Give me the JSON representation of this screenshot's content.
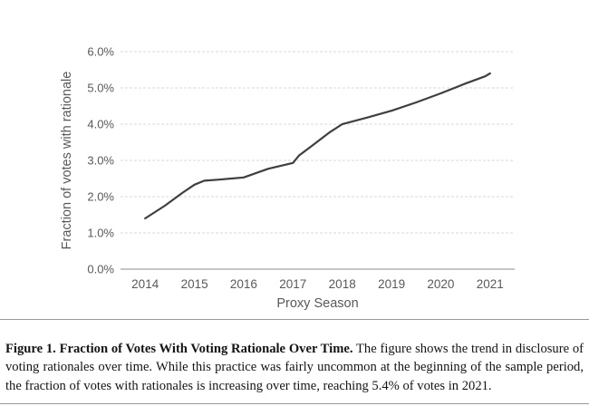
{
  "chart_data": {
    "type": "line",
    "title": "",
    "xlabel": "Proxy Season",
    "ylabel": "Fraction of votes with rationale",
    "categories": [
      "2014",
      "2015",
      "2016",
      "2017",
      "2018",
      "2019",
      "2020",
      "2021"
    ],
    "series": [
      {
        "name": "Fraction of votes with rationale",
        "values": [
          1.4,
          2.35,
          2.55,
          2.93,
          4.0,
          4.37,
          4.85,
          5.4
        ]
      }
    ],
    "detailed_points": [
      [
        2014.0,
        1.4
      ],
      [
        2014.4,
        1.75
      ],
      [
        2014.75,
        2.1
      ],
      [
        2015.0,
        2.33
      ],
      [
        2015.2,
        2.44
      ],
      [
        2015.5,
        2.47
      ],
      [
        2016.0,
        2.53
      ],
      [
        2016.5,
        2.77
      ],
      [
        2017.0,
        2.93
      ],
      [
        2017.12,
        3.13
      ],
      [
        2017.4,
        3.42
      ],
      [
        2017.75,
        3.78
      ],
      [
        2018.0,
        4.0
      ],
      [
        2018.5,
        4.18
      ],
      [
        2019.0,
        4.37
      ],
      [
        2019.5,
        4.6
      ],
      [
        2020.0,
        4.85
      ],
      [
        2020.5,
        5.12
      ],
      [
        2020.9,
        5.32
      ],
      [
        2021.0,
        5.4
      ]
    ],
    "ylim": [
      0,
      6
    ],
    "ytick_step": 1.0,
    "ytick_labels": [
      "0.0%",
      "1.0%",
      "2.0%",
      "3.0%",
      "4.0%",
      "5.0%",
      "6.0%"
    ],
    "grid": true,
    "legend": "none",
    "colors": {
      "line": "#3f3f3f",
      "grid": "#d9d9d9",
      "axis": "#b3b3b3",
      "tick_text": "#595959",
      "axis_title_text": "#595959"
    }
  },
  "caption": {
    "title": "Figure 1. Fraction of Votes With Voting Rationale Over Time.",
    "body": " The figure shows the trend in disclosure of voting rationales over time. While this practice was fairly uncommon at the beginning of the sample period, the fraction of votes with rationales is increasing over time, reaching 5.4% of votes in 2021."
  }
}
